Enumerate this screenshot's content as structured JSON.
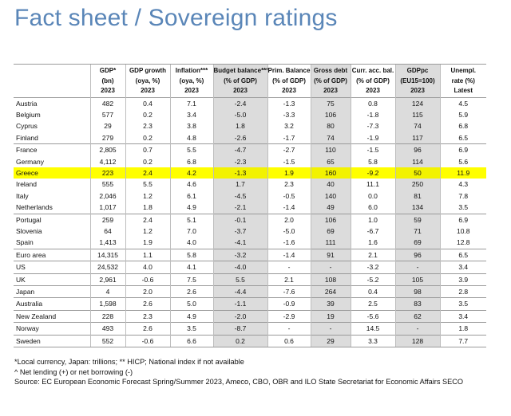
{
  "title": "Fact sheet / Sovereign ratings",
  "columns": [
    {
      "h1": "GDP*",
      "h2": "(bn)",
      "h3": "2023"
    },
    {
      "h1": "GDP growth",
      "h2": "(oya, %)",
      "h3": "2023"
    },
    {
      "h1": "Inflation***",
      "h2": "(oya, %)",
      "h3": "2023"
    },
    {
      "h1": "Budget balance***",
      "h2": "(% of GDP)",
      "h3": "2023"
    },
    {
      "h1": "Prim. Balance",
      "h2": "(% of GDP)",
      "h3": "2023"
    },
    {
      "h1": "Gross debt",
      "h2": "(% of GDP)",
      "h3": "2023"
    },
    {
      "h1": "Curr. acc. bal.",
      "h2": "(% of GDP)",
      "h3": "2023"
    },
    {
      "h1": "GDPpc",
      "h2": "(EU15=100)",
      "h3": "2023"
    },
    {
      "h1": "Unempl.",
      "h2": "rate (%)",
      "h3": "Latest"
    }
  ],
  "rows": [
    {
      "name": "Austria",
      "v": [
        "482",
        "0.4",
        "7.1",
        "-2.4",
        "-1.3",
        "75",
        "0.8",
        "124",
        "4.5"
      ]
    },
    {
      "name": "Belgium",
      "v": [
        "577",
        "0.2",
        "3.4",
        "-5.0",
        "-3.3",
        "106",
        "-1.8",
        "115",
        "5.9"
      ]
    },
    {
      "name": "Cyprus",
      "v": [
        "29",
        "2.3",
        "3.8",
        "1.8",
        "3.2",
        "80",
        "-7.3",
        "74",
        "6.8"
      ]
    },
    {
      "name": "Finland",
      "v": [
        "279",
        "0.2",
        "4.8",
        "-2.6",
        "-1.7",
        "74",
        "-1.9",
        "117",
        "6.5"
      ]
    },
    {
      "name": "France",
      "v": [
        "2,805",
        "0.7",
        "5.5",
        "-4.7",
        "-2.7",
        "110",
        "-1.5",
        "96",
        "6.9"
      ]
    },
    {
      "name": "Germany",
      "v": [
        "4,112",
        "0.2",
        "6.8",
        "-2.3",
        "-1.5",
        "65",
        "5.8",
        "114",
        "5.6"
      ]
    },
    {
      "name": "Greece",
      "v": [
        "223",
        "2.4",
        "4.2",
        "-1.3",
        "1.9",
        "160",
        "-9.2",
        "50",
        "11.9"
      ]
    },
    {
      "name": "Ireland",
      "v": [
        "555",
        "5.5",
        "4.6",
        "1.7",
        "2.3",
        "40",
        "11.1",
        "250",
        "4.3"
      ]
    },
    {
      "name": "Italy",
      "v": [
        "2,046",
        "1.2",
        "6.1",
        "-4.5",
        "-0.5",
        "140",
        "0.0",
        "81",
        "7.8"
      ]
    },
    {
      "name": "Netherlands",
      "v": [
        "1,017",
        "1.8",
        "4.9",
        "-2.1",
        "-1.4",
        "49",
        "6.0",
        "134",
        "3.5"
      ]
    },
    {
      "name": "Portugal",
      "v": [
        "259",
        "2.4",
        "5.1",
        "-0.1",
        "2.0",
        "106",
        "1.0",
        "59",
        "6.9"
      ]
    },
    {
      "name": "Slovenia",
      "v": [
        "64",
        "1.2",
        "7.0",
        "-3.7",
        "-5.0",
        "69",
        "-6.7",
        "71",
        "10.8"
      ]
    },
    {
      "name": "Spain",
      "v": [
        "1,413",
        "1.9",
        "4.0",
        "-4.1",
        "-1.6",
        "111",
        "1.6",
        "69",
        "12.8"
      ]
    },
    {
      "name": "Euro area",
      "v": [
        "14,315",
        "1.1",
        "5.8",
        "-3.2",
        "-1.4",
        "91",
        "2.1",
        "96",
        "6.5"
      ]
    },
    {
      "name": "US",
      "v": [
        "24,532",
        "4.0",
        "4.1",
        "-4.0",
        "-",
        "-",
        "-3.2",
        "-",
        "3.4"
      ]
    },
    {
      "name": "UK",
      "v": [
        "2,961",
        "-0.6",
        "7.5",
        "5.5",
        "2.1",
        "108",
        "-5.2",
        "105",
        "3.9"
      ]
    },
    {
      "name": "Japan",
      "v": [
        "4",
        "2.0",
        "2.6",
        "-4.4",
        "-7.6",
        "264",
        "0.4",
        "98",
        "2.8"
      ]
    },
    {
      "name": "Australia",
      "v": [
        "1,598",
        "2.6",
        "5.0",
        "-1.1",
        "-0.9",
        "39",
        "2.5",
        "83",
        "3.5"
      ]
    },
    {
      "name": "New Zealand",
      "v": [
        "228",
        "2.3",
        "4.9",
        "-2.0",
        "-2.9",
        "19",
        "-5.6",
        "62",
        "3.4"
      ]
    },
    {
      "name": "Norway",
      "v": [
        "493",
        "2.6",
        "3.5",
        "-8.7",
        "-",
        "-",
        "14.5",
        "-",
        "1.8"
      ]
    },
    {
      "name": "Sweden",
      "v": [
        "552",
        "-0.6",
        "6.6",
        "0.2",
        "0.6",
        "29",
        "3.3",
        "128",
        "7.7"
      ]
    }
  ],
  "footnotes": {
    "line1": "*Local currency, Japan: trillions; ** HICP; National index if not available",
    "line2": "^ Net lending (+) or net borrowing (-)",
    "line3": "Source: EC European Economic Forecast Spring/Summer 2023, Ameco, CBO, OBR and ILO State Secretariat for Economic Affairs SECO"
  },
  "colors": {
    "title": "#5a86b8",
    "highlight": "#ffff00",
    "shade": "#dcdcdc"
  }
}
